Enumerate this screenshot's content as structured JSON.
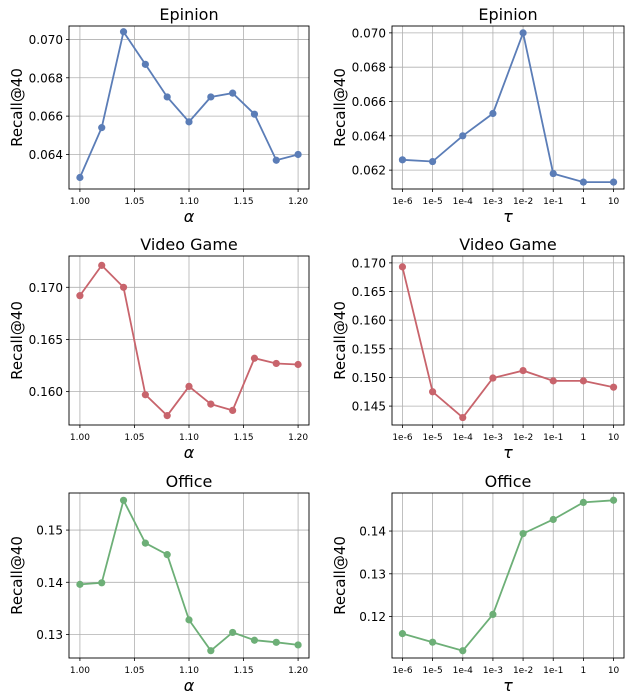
{
  "colors": {
    "epinion": "#5B7DB7",
    "videogame": "#C8646C",
    "office": "#6DAF77"
  },
  "chart_data": [
    {
      "type": "line",
      "title": "Epinion",
      "xlabel": "α",
      "ylabel": "Recall@40",
      "x": [
        1.0,
        1.02,
        1.04,
        1.06,
        1.08,
        1.1,
        1.12,
        1.14,
        1.16,
        1.18,
        1.2
      ],
      "xticks": [
        "1.00",
        "1.05",
        "1.10",
        "1.15",
        "1.20"
      ],
      "xtick_values": [
        1.0,
        1.05,
        1.1,
        1.15,
        1.2
      ],
      "xlim": [
        0.99,
        1.21
      ],
      "yticks": [
        "0.064",
        "0.066",
        "0.068",
        "0.070"
      ],
      "ytick_values": [
        0.064,
        0.066,
        0.068,
        0.07
      ],
      "ylim": [
        0.0622,
        0.0707
      ],
      "series": [
        {
          "color": "#5B7DB7",
          "values": [
            0.0628,
            0.0654,
            0.0704,
            0.0687,
            0.067,
            0.0657,
            0.067,
            0.0672,
            0.0661,
            0.0637,
            0.064
          ]
        }
      ],
      "grid": true
    },
    {
      "type": "line",
      "title": "Epinion",
      "xlabel": "τ",
      "ylabel": "Recall@40",
      "categories": [
        "1e-6",
        "1e-5",
        "1e-4",
        "1e-3",
        "1e-2",
        "1e-1",
        "1",
        "10"
      ],
      "yticks": [
        "0.062",
        "0.064",
        "0.066",
        "0.068",
        "0.070"
      ],
      "ytick_values": [
        0.062,
        0.064,
        0.066,
        0.068,
        0.07
      ],
      "ylim": [
        0.0609,
        0.0704
      ],
      "series": [
        {
          "color": "#5B7DB7",
          "values": [
            0.0626,
            0.0625,
            0.064,
            0.0653,
            0.07,
            0.0618,
            0.0613,
            0.0613
          ]
        }
      ],
      "grid": true
    },
    {
      "type": "line",
      "title": "Video Game",
      "xlabel": "α",
      "ylabel": "Recall@40",
      "x": [
        1.0,
        1.02,
        1.04,
        1.06,
        1.08,
        1.1,
        1.12,
        1.14,
        1.16,
        1.18,
        1.2
      ],
      "xticks": [
        "1.00",
        "1.05",
        "1.10",
        "1.15",
        "1.20"
      ],
      "xtick_values": [
        1.0,
        1.05,
        1.1,
        1.15,
        1.2
      ],
      "xlim": [
        0.99,
        1.21
      ],
      "yticks": [
        "0.160",
        "0.165",
        "0.170"
      ],
      "ytick_values": [
        0.16,
        0.165,
        0.17
      ],
      "ylim": [
        0.1568,
        0.173
      ],
      "series": [
        {
          "color": "#C8646C",
          "values": [
            0.1692,
            0.1721,
            0.17,
            0.1597,
            0.1577,
            0.1605,
            0.1588,
            0.1582,
            0.1632,
            0.1627,
            0.1626
          ]
        }
      ],
      "grid": true
    },
    {
      "type": "line",
      "title": "Video Game",
      "xlabel": "τ",
      "ylabel": "Recall@40",
      "categories": [
        "1e-6",
        "1e-5",
        "1e-4",
        "1e-3",
        "1e-2",
        "1e-1",
        "1",
        "10"
      ],
      "yticks": [
        "0.145",
        "0.150",
        "0.155",
        "0.160",
        "0.165",
        "0.170"
      ],
      "ytick_values": [
        0.145,
        0.15,
        0.155,
        0.16,
        0.165,
        0.17
      ],
      "ylim": [
        0.1417,
        0.1712
      ],
      "series": [
        {
          "color": "#C8646C",
          "values": [
            0.1693,
            0.1475,
            0.143,
            0.1499,
            0.1512,
            0.1494,
            0.1494,
            0.1483
          ]
        }
      ],
      "grid": true
    },
    {
      "type": "line",
      "title": "Office",
      "xlabel": "α",
      "ylabel": "Recall@40",
      "x": [
        1.0,
        1.02,
        1.04,
        1.06,
        1.08,
        1.1,
        1.12,
        1.14,
        1.16,
        1.18,
        1.2
      ],
      "xticks": [
        "1.00",
        "1.05",
        "1.10",
        "1.15",
        "1.20"
      ],
      "xtick_values": [
        1.0,
        1.05,
        1.1,
        1.15,
        1.2
      ],
      "xlim": [
        0.99,
        1.21
      ],
      "yticks": [
        "0.13",
        "0.14",
        "0.15"
      ],
      "ytick_values": [
        0.13,
        0.14,
        0.15
      ],
      "ylim": [
        0.1255,
        0.1571
      ],
      "series": [
        {
          "color": "#6DAF77",
          "values": [
            0.1396,
            0.1399,
            0.1557,
            0.1475,
            0.1453,
            0.1328,
            0.1269,
            0.1304,
            0.1289,
            0.1285,
            0.128
          ]
        }
      ],
      "grid": true
    },
    {
      "type": "line",
      "title": "Office",
      "xlabel": "τ",
      "ylabel": "Recall@40",
      "categories": [
        "1e-6",
        "1e-5",
        "1e-4",
        "1e-3",
        "1e-2",
        "1e-1",
        "1",
        "10"
      ],
      "yticks": [
        "0.12",
        "0.13",
        "0.14"
      ],
      "ytick_values": [
        0.12,
        0.13,
        0.14
      ],
      "ylim": [
        0.1103,
        0.1489
      ],
      "series": [
        {
          "color": "#6DAF77",
          "values": [
            0.116,
            0.114,
            0.112,
            0.1205,
            0.1394,
            0.1427,
            0.1467,
            0.1472
          ]
        }
      ],
      "grid": true
    }
  ]
}
